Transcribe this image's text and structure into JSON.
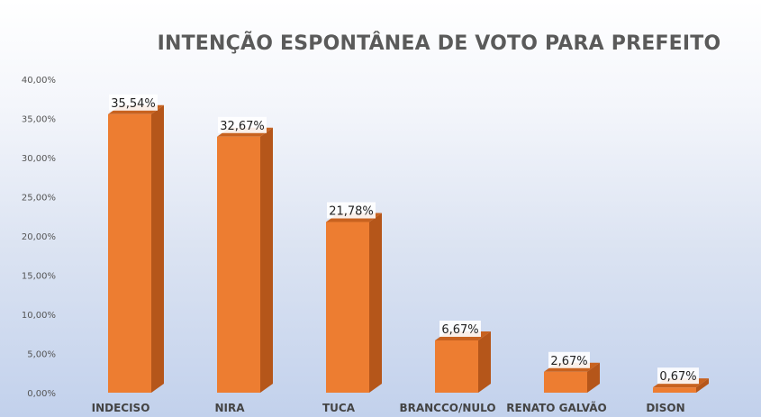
{
  "chart_data": {
    "type": "bar",
    "title": "INTENÇÃO ESPONTÂNEA DE VOTO PARA PREFEITO",
    "categories": [
      "INDECISO",
      "NIRA",
      "TUCA",
      "BRANCCO/NULO",
      "RENATO GALVÃO",
      "DISON"
    ],
    "values": [
      35.54,
      32.67,
      21.78,
      6.67,
      2.67,
      0.67
    ],
    "data_labels": [
      "35,54%",
      "32,67%",
      "21,78%",
      "6,67%",
      "2,67%",
      "0,67%"
    ],
    "y_ticks": [
      "0,00%",
      "5,00%",
      "10,00%",
      "15,00%",
      "20,00%",
      "25,00%",
      "30,00%",
      "35,00%",
      "40,00%"
    ],
    "ylim": [
      0,
      40
    ],
    "xlabel": "",
    "ylabel": "",
    "grid": false,
    "legend": "none",
    "bar_color": "#ED7D31",
    "bar_side_color": "#B5561A",
    "bar_top_color": "#C8621F"
  }
}
